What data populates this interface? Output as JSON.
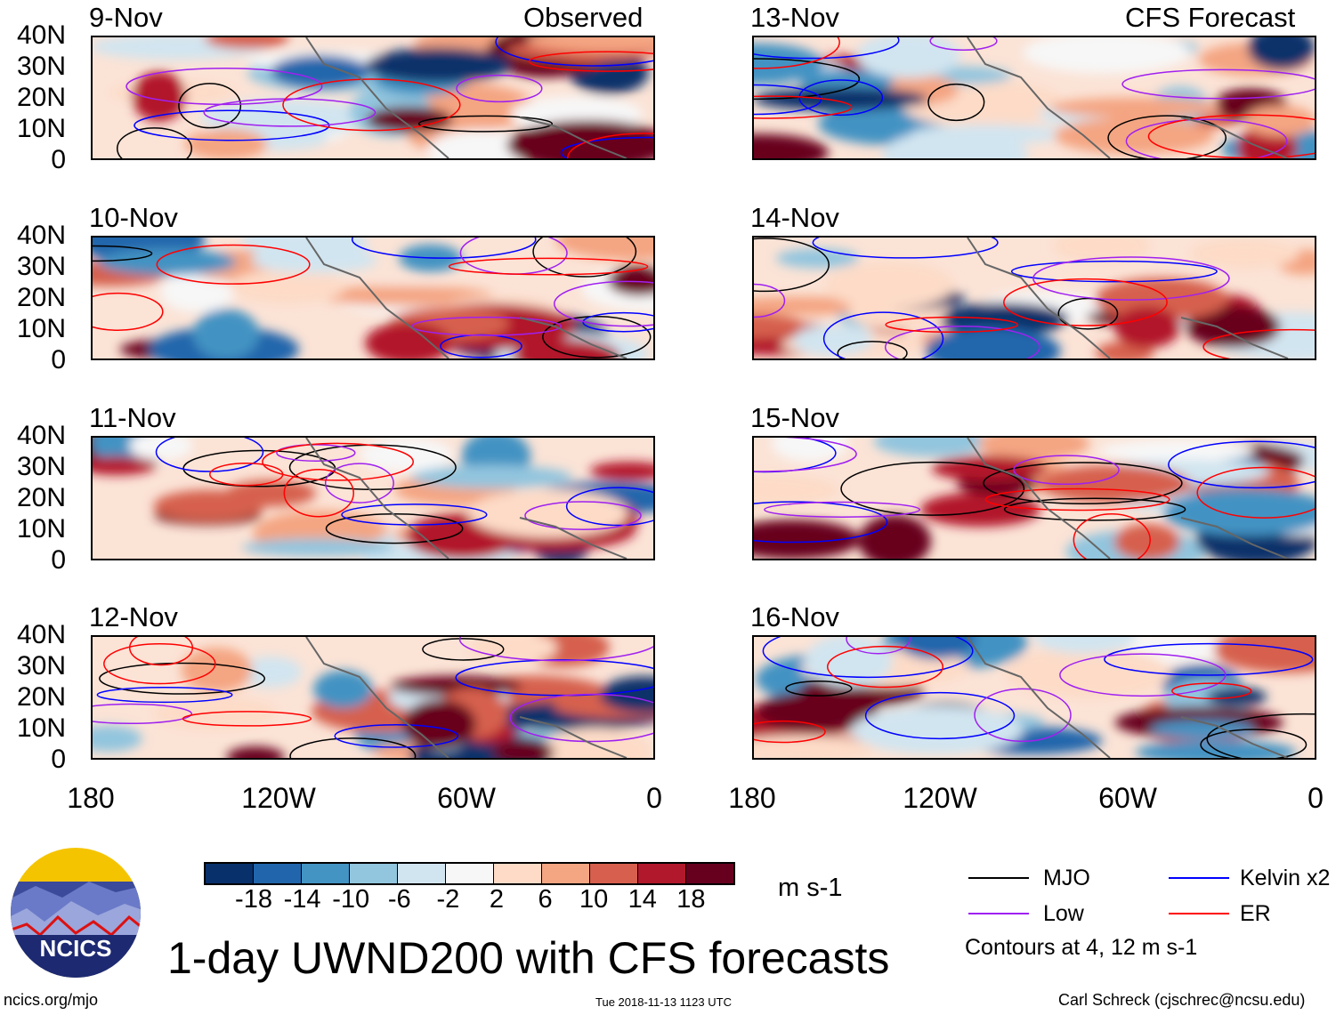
{
  "header": {
    "left_label": "Observed",
    "right_label": "CFS Forecast"
  },
  "panels": [
    {
      "date": "9-Nov",
      "column": "observed"
    },
    {
      "date": "10-Nov",
      "column": "observed"
    },
    {
      "date": "11-Nov",
      "column": "observed"
    },
    {
      "date": "12-Nov",
      "column": "observed"
    },
    {
      "date": "13-Nov",
      "column": "forecast"
    },
    {
      "date": "14-Nov",
      "column": "forecast"
    },
    {
      "date": "15-Nov",
      "column": "forecast"
    },
    {
      "date": "16-Nov",
      "column": "forecast"
    }
  ],
  "y_ticks": [
    "40N",
    "30N",
    "20N",
    "10N",
    "0"
  ],
  "x_ticks": [
    "180",
    "120W",
    "60W",
    "0"
  ],
  "colorbar": {
    "colors": [
      "#08306b",
      "#2166ac",
      "#4393c3",
      "#92c5de",
      "#d1e5f0",
      "#f7f7f7",
      "#fddbc7",
      "#f4a582",
      "#d6604d",
      "#b2182b",
      "#67001f"
    ],
    "labels": [
      "-18",
      "-14",
      "-10",
      "-6",
      "-2",
      "2",
      "6",
      "10",
      "14",
      "18"
    ],
    "units": "m s-1"
  },
  "legend": {
    "items": [
      {
        "label": "MJO",
        "color": "#000000"
      },
      {
        "label": "Kelvin x2",
        "color": "#0000ff"
      },
      {
        "label": "Low",
        "color": "#a020f0"
      },
      {
        "label": "ER",
        "color": "#ff0000"
      }
    ],
    "note": "Contours at 4, 12 m s-1"
  },
  "title": "1-day UWND200 with CFS forecasts",
  "logo_text": "NCICS",
  "footer": {
    "left": "ncics.org/mjo",
    "center": "Tue 2018-11-13 1123 UTC",
    "right": "Carl Schreck (cjschrec@ncsu.edu)"
  }
}
